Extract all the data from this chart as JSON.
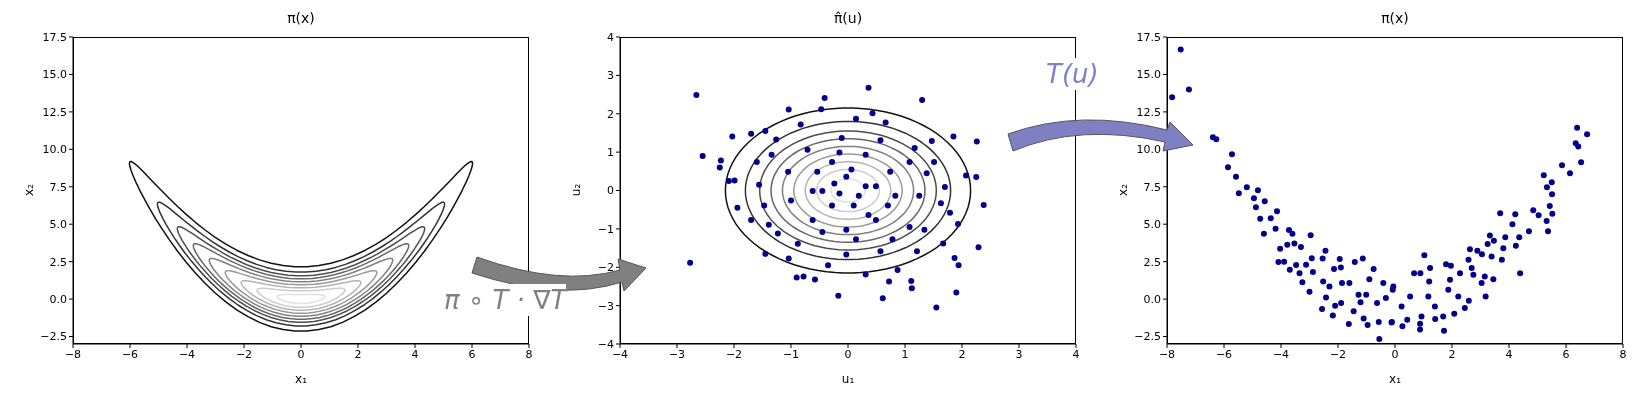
{
  "chart_data": [
    {
      "type": "line",
      "title": "π(x)",
      "xlabel": "x₁",
      "ylabel": "x₂",
      "xlim": [
        -8,
        8
      ],
      "ylim": [
        -3,
        17.5
      ],
      "xticks": [
        {
          "value": -8,
          "label": "−8"
        },
        {
          "value": -6,
          "label": "−6"
        },
        {
          "value": -4,
          "label": "−4"
        },
        {
          "value": -2,
          "label": "−2"
        },
        0,
        2,
        4,
        6,
        8
      ],
      "yticks": [
        {
          "value": -2.5,
          "label": "−2.5"
        },
        {
          "value": 0,
          "label": "0.0"
        },
        {
          "value": 2.5,
          "label": "2.5"
        },
        {
          "value": 5,
          "label": "5.0"
        },
        {
          "value": 7.5,
          "label": "7.5"
        },
        {
          "value": 10,
          "label": "10.0"
        },
        {
          "value": 12.5,
          "label": "12.5"
        },
        {
          "value": 15,
          "label": "15.0"
        },
        {
          "value": 17.5,
          "label": "17.5"
        }
      ],
      "annotations": [
        "π ∘ T · ∇T"
      ]
    },
    {
      "type": "scatter",
      "title": "π̂(u)",
      "xlabel": "u₁",
      "ylabel": "u₂",
      "xlim": [
        -4,
        4
      ],
      "ylim": [
        -4,
        4
      ],
      "xticks": [
        {
          "value": -4,
          "label": "−4"
        },
        {
          "value": -3,
          "label": "−3"
        },
        {
          "value": -2,
          "label": "−2"
        },
        {
          "value": -1,
          "label": "−1"
        },
        0,
        1,
        2,
        3,
        4
      ],
      "yticks": [
        {
          "value": -4,
          "label": "−4"
        },
        {
          "value": -3,
          "label": "−3"
        },
        {
          "value": -2,
          "label": "−2"
        },
        {
          "value": -1,
          "label": "−1"
        },
        0,
        1,
        2,
        3,
        4
      ],
      "annotations": [
        "T(u)"
      ],
      "series": [
        {
          "marker": "circle",
          "color": "#00008b",
          "x": [
            -2.66,
            -2.55,
            -2.77,
            -2.23,
            -2.25,
            -2.09,
            -1.99,
            -2.03,
            -1.94,
            -1.7,
            -1.45,
            -1.04,
            -0.41,
            -0.47,
            0.36,
            1.3,
            0.43,
            1.85,
            2.26,
            2.07,
            2.38,
            2.29,
            2.25,
            1.93,
            1.87,
            1.94,
            1.9,
            1.55,
            1.11,
            1.12,
            0.61,
            -0.17,
            -0.58,
            -0.9,
            -0.78,
            -1.45,
            -1.7,
            1.67,
            1.21,
            0.87,
            0.72,
            0.31,
            -0.35,
            -1.04,
            1.47,
            1.17,
            1.7,
            1.79,
            1.38,
            0.66,
            0.14,
            -0.83,
            -1.26,
            -1.56,
            -1.47,
            -1.23,
            -0.88,
            -0.03,
            0.57,
            1.08,
            1.25,
            1.08,
            0.57,
            -0.11,
            -0.71,
            -1.05,
            -1.0,
            -0.62,
            -0.03,
            0.49,
            0.83,
            0.74,
            0.31,
            -0.15,
            -0.54,
            -0.45,
            -0.28,
            0.1,
            0.31,
            -0.03,
            -0.24,
            0.19,
            -0.15,
            0.06,
            0.36,
            -0.45,
            0.14,
            0.78,
            1.34,
            -1.39,
            -1.6,
            -1.34,
            1.51,
            1.63,
            -0.62,
            -0.28,
            0.7,
            0.49
          ],
          "values": [
            2.49,
            0.9,
            -1.88,
            0.78,
            0.6,
            0.25,
            0.26,
            1.41,
            -0.45,
            1.48,
            1.55,
            2.11,
            2.41,
            2.12,
            2.68,
            2.36,
            2.01,
            1.41,
            1.28,
            0.39,
            -0.38,
            -1.48,
            0.35,
            -0.87,
            -1.76,
            -1.95,
            -2.66,
            -3.05,
            -2.36,
            -2.55,
            -2.81,
            -2.74,
            -2.32,
            -2.27,
            -2.24,
            -1.65,
            -0.77,
            -1.38,
            -1.58,
            -2.07,
            -2.37,
            -2.19,
            -1.95,
            -1.77,
            1.29,
            1.11,
            0.09,
            -0.58,
            0.45,
            1.77,
            1.87,
            1.72,
            1.33,
            0.15,
            -0.39,
            -1.12,
            -1.39,
            -1.67,
            -1.58,
            -0.95,
            -0.14,
            0.74,
            1.31,
            1.37,
            1.06,
            0.49,
            -0.26,
            -0.77,
            -1.02,
            -0.77,
            -0.14,
            0.49,
            0.93,
            0.99,
            0.49,
            -0.01,
            -0.39,
            -0.39,
            0.11,
            0.36,
            0.18,
            -0.14,
            -0.08,
            0.55,
            -0.64,
            -1.08,
            -1.27,
            -1.27,
            -1.02,
            -0.89,
            0.74,
            0.93,
            0.74,
            -0.33,
            -0.01,
            0.74,
            -0.39,
            0.11
          ]
        }
      ]
    },
    {
      "type": "scatter",
      "title": "π(x)",
      "xlabel": "x₁",
      "ylabel": "x₂",
      "xlim": [
        -8,
        8
      ],
      "ylim": [
        -3,
        17.5
      ],
      "marker": "circle",
      "xticks": [
        {
          "value": -8,
          "label": "−8"
        },
        {
          "value": -6,
          "label": "−6"
        },
        {
          "value": -4,
          "label": "−4"
        },
        {
          "value": -2,
          "label": "−2"
        },
        0,
        2,
        4,
        6,
        8
      ],
      "yticks": [
        {
          "value": -2.5,
          "label": "−2.5"
        },
        {
          "value": 0,
          "label": "0.0"
        },
        {
          "value": 2.5,
          "label": "2.5"
        },
        {
          "value": 5,
          "label": "5.0"
        },
        {
          "value": 7.5,
          "label": "7.5"
        },
        {
          "value": 10,
          "label": "10.0"
        },
        {
          "value": 12.5,
          "label": "12.5"
        },
        {
          "value": 15,
          "label": "15.0"
        },
        {
          "value": 17.5,
          "label": "17.5"
        }
      ],
      "series": [
        {
          "color": "#00008b",
          "x": [
            -7.52,
            -7.82,
            -7.23,
            -6.39,
            -6.27,
            -5.72,
            -5.86,
            -5.58,
            -5.48,
            -5.2,
            -4.81,
            -4.95,
            -4.57,
            -4.88,
            -4.73,
            -4.36,
            -4.14,
            -4.6,
            -4.19,
            -3.72,
            -3.6,
            -2.96,
            -4.03,
            -4.09,
            -3.89,
            -3.78,
            -3.53,
            -3.3,
            -3.69,
            -3.47,
            -3.35,
            -3.25,
            -3.12,
            -2.92,
            -2.88,
            -3.0,
            -2.54,
            -2.44,
            -2.52,
            -2.56,
            -2.42,
            -2.3,
            -2.18,
            -2.1,
            -2.14,
            -1.94,
            -1.9,
            -1.86,
            -1.89,
            -1.62,
            -1.6,
            -1.41,
            -1.13,
            -1.28,
            -1.45,
            -1.1,
            -0.96,
            -0.9,
            -0.75,
            -0.55,
            -0.57,
            -0.41,
            -0.32,
            -0.11,
            -0.08,
            -0.63,
            -1.21,
            -1.01,
            -0.06,
            -0.12,
            0.26,
            0.23,
            0.53,
            0.43,
            0.67,
            0.89,
            1.03,
            0.88,
            0.88,
            0.93,
            1.17,
            1.23,
            1.2,
            1.4,
            1.41,
            1.69,
            1.72,
            1.79,
            1.96,
            1.87,
            1.93,
            2.08,
            2.22,
            2.28,
            2.45,
            2.59,
            2.63,
            2.58,
            2.69,
            2.75,
            2.89,
            3.05,
            3.04,
            3.18,
            3.15,
            3.25,
            3.33,
            3.47,
            3.39,
            3.45,
            3.69,
            3.75,
            3.8,
            3.87,
            4.12,
            4.22,
            4.36,
            4.24,
            4.39,
            4.7,
            4.85,
            5.04,
            5.32,
            5.37,
            5.52,
            5.22,
            5.33,
            5.5,
            5.51,
            5.43,
            5.86,
            6.14,
            6.34,
            6.43,
            6.39,
            6.74,
            6.53
          ],
          "values": [
            16.67,
            13.47,
            14.0,
            10.8,
            10.67,
            9.67,
            8.8,
            8.16,
            7.07,
            7.47,
            7.27,
            6.73,
            6.53,
            6.13,
            5.36,
            5.4,
            5.87,
            4.36,
            4.69,
            4.62,
            4.36,
            4.27,
            3.36,
            2.47,
            2.49,
            3.62,
            3.71,
            3.47,
            1.96,
            2.27,
            1.73,
            1.13,
            2.29,
            2.73,
            1.8,
            0.49,
            2.71,
            3.22,
            1.18,
            -0.67,
            0.11,
            0.84,
            -1.09,
            -0.44,
            2.0,
            2.67,
            2.11,
            1.07,
            -0.27,
            -1.67,
            1.07,
            2.47,
            2.71,
            0.29,
            -0.82,
            -1.29,
            -1.73,
            1.33,
            2.0,
            -2.67,
            -1.53,
            1.07,
            0.07,
            -1.53,
            0.62,
            -0.27,
            -0.22,
            0.29,
            0.84,
            -1.56,
            -1.82,
            -0.49,
            0.18,
            -1.38,
            1.73,
            1.73,
            2.93,
            -1.64,
            -2.04,
            -1.16,
            0.18,
            2.07,
            1.18,
            -0.49,
            -1.33,
            -1.16,
            -2.11,
            2.33,
            2.22,
            0.62,
            1.29,
            -0.98,
            0.18,
            1.73,
            -0.6,
            -0.11,
            3.33,
            2.62,
            2.07,
            1.62,
            3.22,
            3.0,
            1.07,
            0.18,
            1.51,
            3.67,
            4.24,
            3.89,
            2.84,
            1.33,
            5.73,
            2.62,
            3.4,
            4.13,
            5.0,
            5.67,
            4.13,
            3.56,
            1.73,
            4.53,
            5.93,
            5.6,
            5.22,
            4.53,
            5.69,
            8.27,
            7.47,
            7.8,
            7.0,
            6.22,
            8.93,
            8.4,
            10.4,
            10.18,
            11.44,
            11.0,
            9.13
          ]
        }
      ]
    }
  ]
}
